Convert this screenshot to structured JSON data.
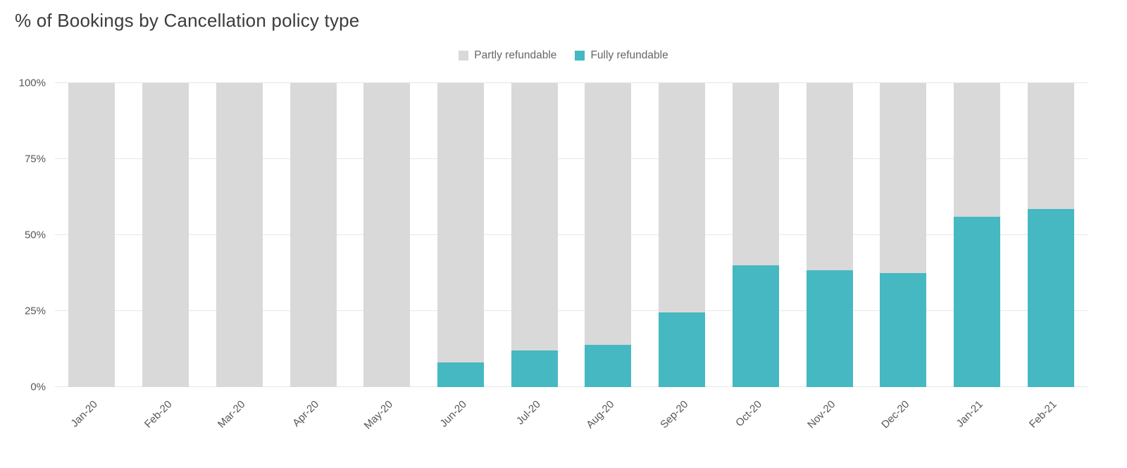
{
  "chart_data": {
    "type": "bar",
    "stacked": true,
    "percent_stacked": true,
    "title": "% of Bookings by Cancellation policy type",
    "xlabel": "",
    "ylabel": "",
    "ylim": [
      0,
      100
    ],
    "grid": true,
    "legend_position": "top-center",
    "yticks": [
      {
        "value": 0,
        "label": "0%"
      },
      {
        "value": 25,
        "label": "25%"
      },
      {
        "value": 50,
        "label": "50%"
      },
      {
        "value": 75,
        "label": "75%"
      },
      {
        "value": 100,
        "label": "100%"
      }
    ],
    "categories": [
      "Jan-20",
      "Feb-20",
      "Mar-20",
      "Apr-20",
      "May-20",
      "Jun-20",
      "Jul-20",
      "Aug-20",
      "Sep-20",
      "Oct-20",
      "Nov-20",
      "Dec-20",
      "Jan-21",
      "Feb-21"
    ],
    "series": [
      {
        "name": "Partly refundable",
        "color": "#d9d9d9",
        "values": [
          100,
          100,
          100,
          100,
          100,
          92,
          88,
          86,
          75.5,
          60,
          61.5,
          62.5,
          44,
          41.5
        ]
      },
      {
        "name": "Fully refundable",
        "color": "#45b8c2",
        "values": [
          0,
          0,
          0,
          0,
          0,
          8,
          12,
          14,
          24.5,
          40,
          38.5,
          37.5,
          56,
          58.5
        ]
      }
    ]
  },
  "colors": {
    "background": "#ffffff",
    "title_text": "#3c3c3c",
    "axis_text": "#575757",
    "gridline": "#e7e7e7"
  }
}
